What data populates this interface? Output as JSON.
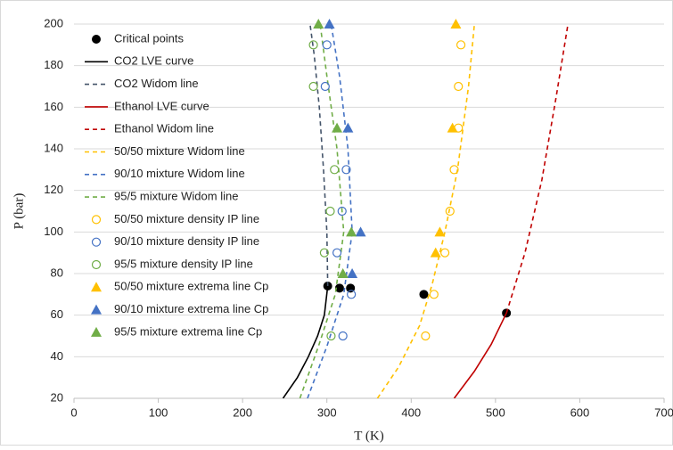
{
  "chart_data": {
    "type": "scatter",
    "x_label": "T (K)",
    "y_label": "P (bar)",
    "xlim": [
      0,
      700
    ],
    "xticks": [
      0,
      100,
      200,
      300,
      400,
      500,
      600,
      700
    ],
    "ylim": [
      20,
      200
    ],
    "yticks": [
      20,
      40,
      60,
      80,
      100,
      120,
      140,
      160,
      180,
      200
    ],
    "grid": true,
    "legend": "upper-left",
    "series": [
      {
        "name": "Critical points",
        "color": "#000000",
        "kind": "marker",
        "marker": "circle",
        "x": [
          301,
          315,
          328,
          415,
          513
        ],
        "y": [
          74,
          73,
          73,
          70,
          61
        ]
      },
      {
        "name": "CO2 LVE curve",
        "color": "#000000",
        "kind": "line",
        "dash": false,
        "x": [
          248,
          265,
          278,
          289,
          297,
          301
        ],
        "y": [
          20,
          30,
          40,
          50,
          60,
          74
        ]
      },
      {
        "name": "CO2 Widom line",
        "color": "#44546a",
        "kind": "line",
        "dash": true,
        "x": [
          301,
          300,
          296,
          291,
          285,
          280
        ],
        "y": [
          74,
          100,
          130,
          160,
          185,
          200
        ]
      },
      {
        "name": "Ethanol LVE curve",
        "color": "#c00000",
        "kind": "line",
        "dash": false,
        "x": [
          451,
          475,
          495,
          513
        ],
        "y": [
          20,
          33,
          46,
          61
        ]
      },
      {
        "name": "Ethanol Widom line",
        "color": "#c00000",
        "kind": "line",
        "dash": true,
        "x": [
          513,
          535,
          555,
          572,
          586
        ],
        "y": [
          61,
          90,
          125,
          165,
          200
        ]
      },
      {
        "name": "50/50 mixture Widom line",
        "color": "#ffc000",
        "kind": "line",
        "dash": true,
        "x": [
          360,
          385,
          410,
          425,
          440,
          455,
          468,
          475
        ],
        "y": [
          20,
          35,
          55,
          75,
          100,
          130,
          170,
          200
        ]
      },
      {
        "name": "90/10 mixture Widom line",
        "color": "#4472c4",
        "kind": "line",
        "dash": true,
        "x": [
          277,
          300,
          320,
          330,
          325,
          315,
          305
        ],
        "y": [
          20,
          45,
          70,
          100,
          140,
          175,
          200
        ]
      },
      {
        "name": "95/5 mixture Widom line",
        "color": "#70ad47",
        "kind": "line",
        "dash": true,
        "x": [
          268,
          290,
          310,
          320,
          312,
          300,
          292
        ],
        "y": [
          20,
          45,
          70,
          100,
          140,
          175,
          200
        ]
      },
      {
        "name": "50/50 mixture density IP line",
        "color": "#ffc000",
        "kind": "marker",
        "marker": "circle-open",
        "x": [
          417,
          427,
          440,
          446,
          451,
          456,
          456,
          459
        ],
        "y": [
          50,
          70,
          90,
          110,
          130,
          150,
          170,
          190
        ]
      },
      {
        "name": "90/10 mixture density IP line",
        "color": "#4472c4",
        "kind": "marker",
        "marker": "circle-open",
        "x": [
          319,
          329,
          312,
          318,
          323,
          298,
          300
        ],
        "y": [
          50,
          70,
          90,
          110,
          130,
          170,
          190
        ]
      },
      {
        "name": "95/5 mixture density IP line",
        "color": "#70ad47",
        "kind": "marker",
        "marker": "circle-open",
        "x": [
          305,
          297,
          304,
          309,
          284,
          284
        ],
        "y": [
          50,
          90,
          110,
          130,
          170,
          190
        ]
      },
      {
        "name": "50/50 mixture extrema line Cp",
        "color": "#ffc000",
        "kind": "marker",
        "marker": "triangle",
        "x": [
          429,
          434,
          449,
          453
        ],
        "y": [
          90,
          100,
          150,
          200
        ]
      },
      {
        "name": "90/10 mixture extrema line Cp",
        "color": "#4472c4",
        "kind": "marker",
        "marker": "triangle",
        "x": [
          330,
          340,
          325,
          303
        ],
        "y": [
          80,
          100,
          150,
          200
        ]
      },
      {
        "name": "95/5 mixture extrema line Cp",
        "color": "#70ad47",
        "kind": "marker",
        "marker": "triangle",
        "x": [
          319,
          329,
          312,
          290
        ],
        "y": [
          80,
          100,
          150,
          200
        ]
      }
    ]
  }
}
